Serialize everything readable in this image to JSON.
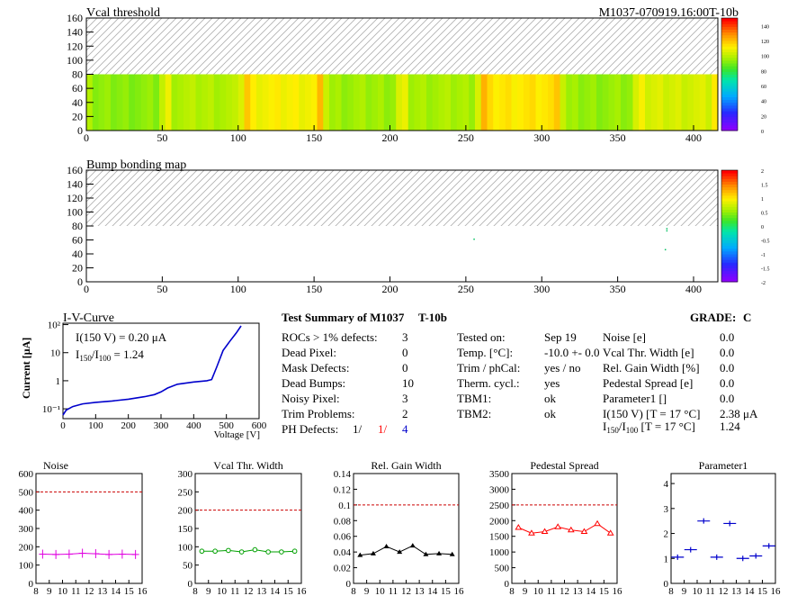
{
  "module_id": "M1037-070919.16:00T-10b",
  "maps": [
    {
      "title": "Vcal threshold",
      "x_ticks": [
        0,
        50,
        100,
        150,
        200,
        250,
        300,
        350,
        400
      ],
      "y_ticks": [
        0,
        20,
        40,
        60,
        80,
        100,
        120,
        140,
        160
      ],
      "xlim": [
        0,
        416
      ],
      "ylim": [
        0,
        160
      ],
      "data_rows": 80,
      "palette_labels": [
        "0",
        "20",
        "40",
        "60",
        "80",
        "100",
        "120",
        "140"
      ],
      "palette_range": [
        0,
        150
      ],
      "fill": "mostly green/yellow (~90-110)"
    },
    {
      "title": "Bump bonding map",
      "x_ticks": [
        0,
        50,
        100,
        150,
        200,
        250,
        300,
        350,
        400
      ],
      "y_ticks": [
        0,
        20,
        40,
        60,
        80,
        100,
        120,
        140,
        160
      ],
      "xlim": [
        0,
        416
      ],
      "ylim": [
        0,
        160
      ],
      "data_rows": 80,
      "palette_labels": [
        "-2",
        "-1.5",
        "-1",
        "-0.5",
        "0",
        "0.5",
        "1",
        "1.5",
        "2"
      ],
      "palette_range": [
        -2,
        2
      ]
    }
  ],
  "iv_curve": {
    "title": "I-V-Curve",
    "ylabel": "Current [μA]",
    "xlabel": "Voltage [V]",
    "x_ticks": [
      "0",
      "100",
      "200",
      "300",
      "400",
      "500",
      "600"
    ],
    "y_ticks": [
      "10⁻¹",
      "1",
      "10",
      "10²"
    ],
    "log_y": true,
    "annotation_1": "I(150 V) = 0.20 μA",
    "annotation_2_prefix": "I",
    "annotation_2_sub1": "150",
    "annotation_2_mid": "/I",
    "annotation_2_sub2": "100",
    "annotation_2_value": " =  1.24",
    "points": [
      [
        0,
        0.06
      ],
      [
        10,
        0.09
      ],
      [
        30,
        0.12
      ],
      [
        60,
        0.15
      ],
      [
        100,
        0.17
      ],
      [
        150,
        0.19
      ],
      [
        200,
        0.22
      ],
      [
        250,
        0.27
      ],
      [
        280,
        0.32
      ],
      [
        300,
        0.4
      ],
      [
        320,
        0.55
      ],
      [
        350,
        0.75
      ],
      [
        400,
        0.9
      ],
      [
        440,
        1.0
      ],
      [
        455,
        1.1
      ],
      [
        470,
        3
      ],
      [
        490,
        12
      ],
      [
        510,
        25
      ],
      [
        530,
        50
      ],
      [
        545,
        90
      ]
    ]
  },
  "summary": {
    "title": "Test Summary of M1037",
    "subtitle": "T-10b",
    "grade_label": "GRADE:",
    "grade": "C",
    "left": [
      {
        "label": "ROCs > 1% defects:",
        "value": "3"
      },
      {
        "label": "Dead Pixel:",
        "value": "0"
      },
      {
        "label": "Mask Defects:",
        "value": "0"
      },
      {
        "label": "Dead Bumps:",
        "value": "10"
      },
      {
        "label": "Noisy Pixel:",
        "value": "3"
      },
      {
        "label": "Trim Problems:",
        "value": "2"
      }
    ],
    "ph_defects": {
      "label": "PH Defects:",
      "v1": "1/",
      "v2": "1/",
      "v3": "4",
      "c1": "#000000",
      "c2": "#ff0000",
      "c3": "#0000cc"
    },
    "middle": [
      {
        "label": "Tested on:",
        "value": "Sep 19"
      },
      {
        "label": "Temp. [°C]:",
        "value": "-10.0 +- 0.0"
      },
      {
        "label": "Trim / phCal:",
        "value": "yes / no"
      },
      {
        "label": "Therm. cycl.:",
        "value": "yes"
      },
      {
        "label": "TBM1:",
        "value": "ok"
      },
      {
        "label": "TBM2:",
        "value": "ok"
      }
    ],
    "right": [
      {
        "label": "Noise [e]",
        "value": "0.0"
      },
      {
        "label": "Vcal Thr. Width [e]",
        "value": "0.0"
      },
      {
        "label": "Rel. Gain Width [%]",
        "value": "0.0"
      },
      {
        "label": "Pedestal Spread [e]",
        "value": "0.0"
      },
      {
        "label": "Parameter1 []",
        "value": "0.0"
      },
      {
        "label": "I(150 V) [T = 17 °C]",
        "value": "2.38 μA"
      }
    ],
    "ratio_row": {
      "prefix": "I",
      "sub1": "150",
      "mid": "/I",
      "sub2": "100",
      "suffix": "  [T = 17 °C]",
      "value": "1.24"
    }
  },
  "chart_data": [
    {
      "type": "line",
      "title": "Noise",
      "x": [
        8.5,
        9.5,
        10.5,
        11.5,
        12.5,
        13.5,
        14.5,
        15.5
      ],
      "x_ticks": [
        8,
        9,
        10,
        11,
        12,
        13,
        14,
        15,
        16
      ],
      "y_ticks": [
        "0",
        "100",
        "200",
        "300",
        "400",
        "500",
        "600"
      ],
      "ylim": [
        0,
        600
      ],
      "values": [
        160,
        158,
        160,
        165,
        162,
        158,
        160,
        158
      ],
      "threshold": 500,
      "color": "#e000e0",
      "marker": "cross"
    },
    {
      "type": "line",
      "title": "Vcal Thr. Width",
      "x": [
        8.5,
        9.5,
        10.5,
        11.5,
        12.5,
        13.5,
        14.5,
        15.5
      ],
      "x_ticks": [
        8,
        9,
        10,
        11,
        12,
        13,
        14,
        15,
        16
      ],
      "y_ticks": [
        "0",
        "50",
        "100",
        "150",
        "200",
        "250",
        "300"
      ],
      "ylim": [
        0,
        300
      ],
      "values": [
        88,
        88,
        90,
        86,
        92,
        86,
        86,
        88
      ],
      "threshold": 200,
      "color": "#00a000",
      "marker": "circle"
    },
    {
      "type": "line",
      "title": "Rel. Gain Width",
      "x": [
        8.5,
        9.5,
        10.5,
        11.5,
        12.5,
        13.5,
        14.5,
        15.5
      ],
      "x_ticks": [
        8,
        9,
        10,
        11,
        12,
        13,
        14,
        15,
        16
      ],
      "y_ticks": [
        "0",
        "0.02",
        "0.04",
        "0.06",
        "0.08",
        "0.1",
        "0.12",
        "0.14"
      ],
      "ylim": [
        0,
        0.14
      ],
      "values": [
        0.036,
        0.038,
        0.047,
        0.04,
        0.048,
        0.037,
        0.038,
        0.037
      ],
      "threshold": 0.1,
      "color": "#000000",
      "marker": "triangle"
    },
    {
      "type": "line",
      "title": "Pedestal Spread",
      "x": [
        8.5,
        9.5,
        10.5,
        11.5,
        12.5,
        13.5,
        14.5,
        15.5
      ],
      "x_ticks": [
        8,
        9,
        10,
        11,
        12,
        13,
        14,
        15,
        16
      ],
      "y_ticks": [
        "0",
        "500",
        "1000",
        "1500",
        "2000",
        "2500",
        "3000",
        "3500"
      ],
      "ylim": [
        0,
        3500
      ],
      "values": [
        1780,
        1600,
        1650,
        1800,
        1700,
        1650,
        1900,
        1600
      ],
      "threshold": 2500,
      "color": "#ff0000",
      "marker": "triangle-open"
    },
    {
      "type": "scatter",
      "title": "Parameter1",
      "x": [
        8.5,
        9.5,
        10.5,
        11.5,
        12.5,
        13.5,
        14.5,
        15.5
      ],
      "x_ticks": [
        8,
        9,
        10,
        11,
        12,
        13,
        14,
        15,
        16
      ],
      "y_ticks": [
        "0",
        "1",
        "2",
        "3",
        "4"
      ],
      "ylim": [
        0,
        4.4
      ],
      "values": [
        1.05,
        1.35,
        2.5,
        1.05,
        2.4,
        1.0,
        1.1,
        1.5
      ],
      "threshold": null,
      "color": "#0000cc",
      "marker": "hbar"
    }
  ]
}
